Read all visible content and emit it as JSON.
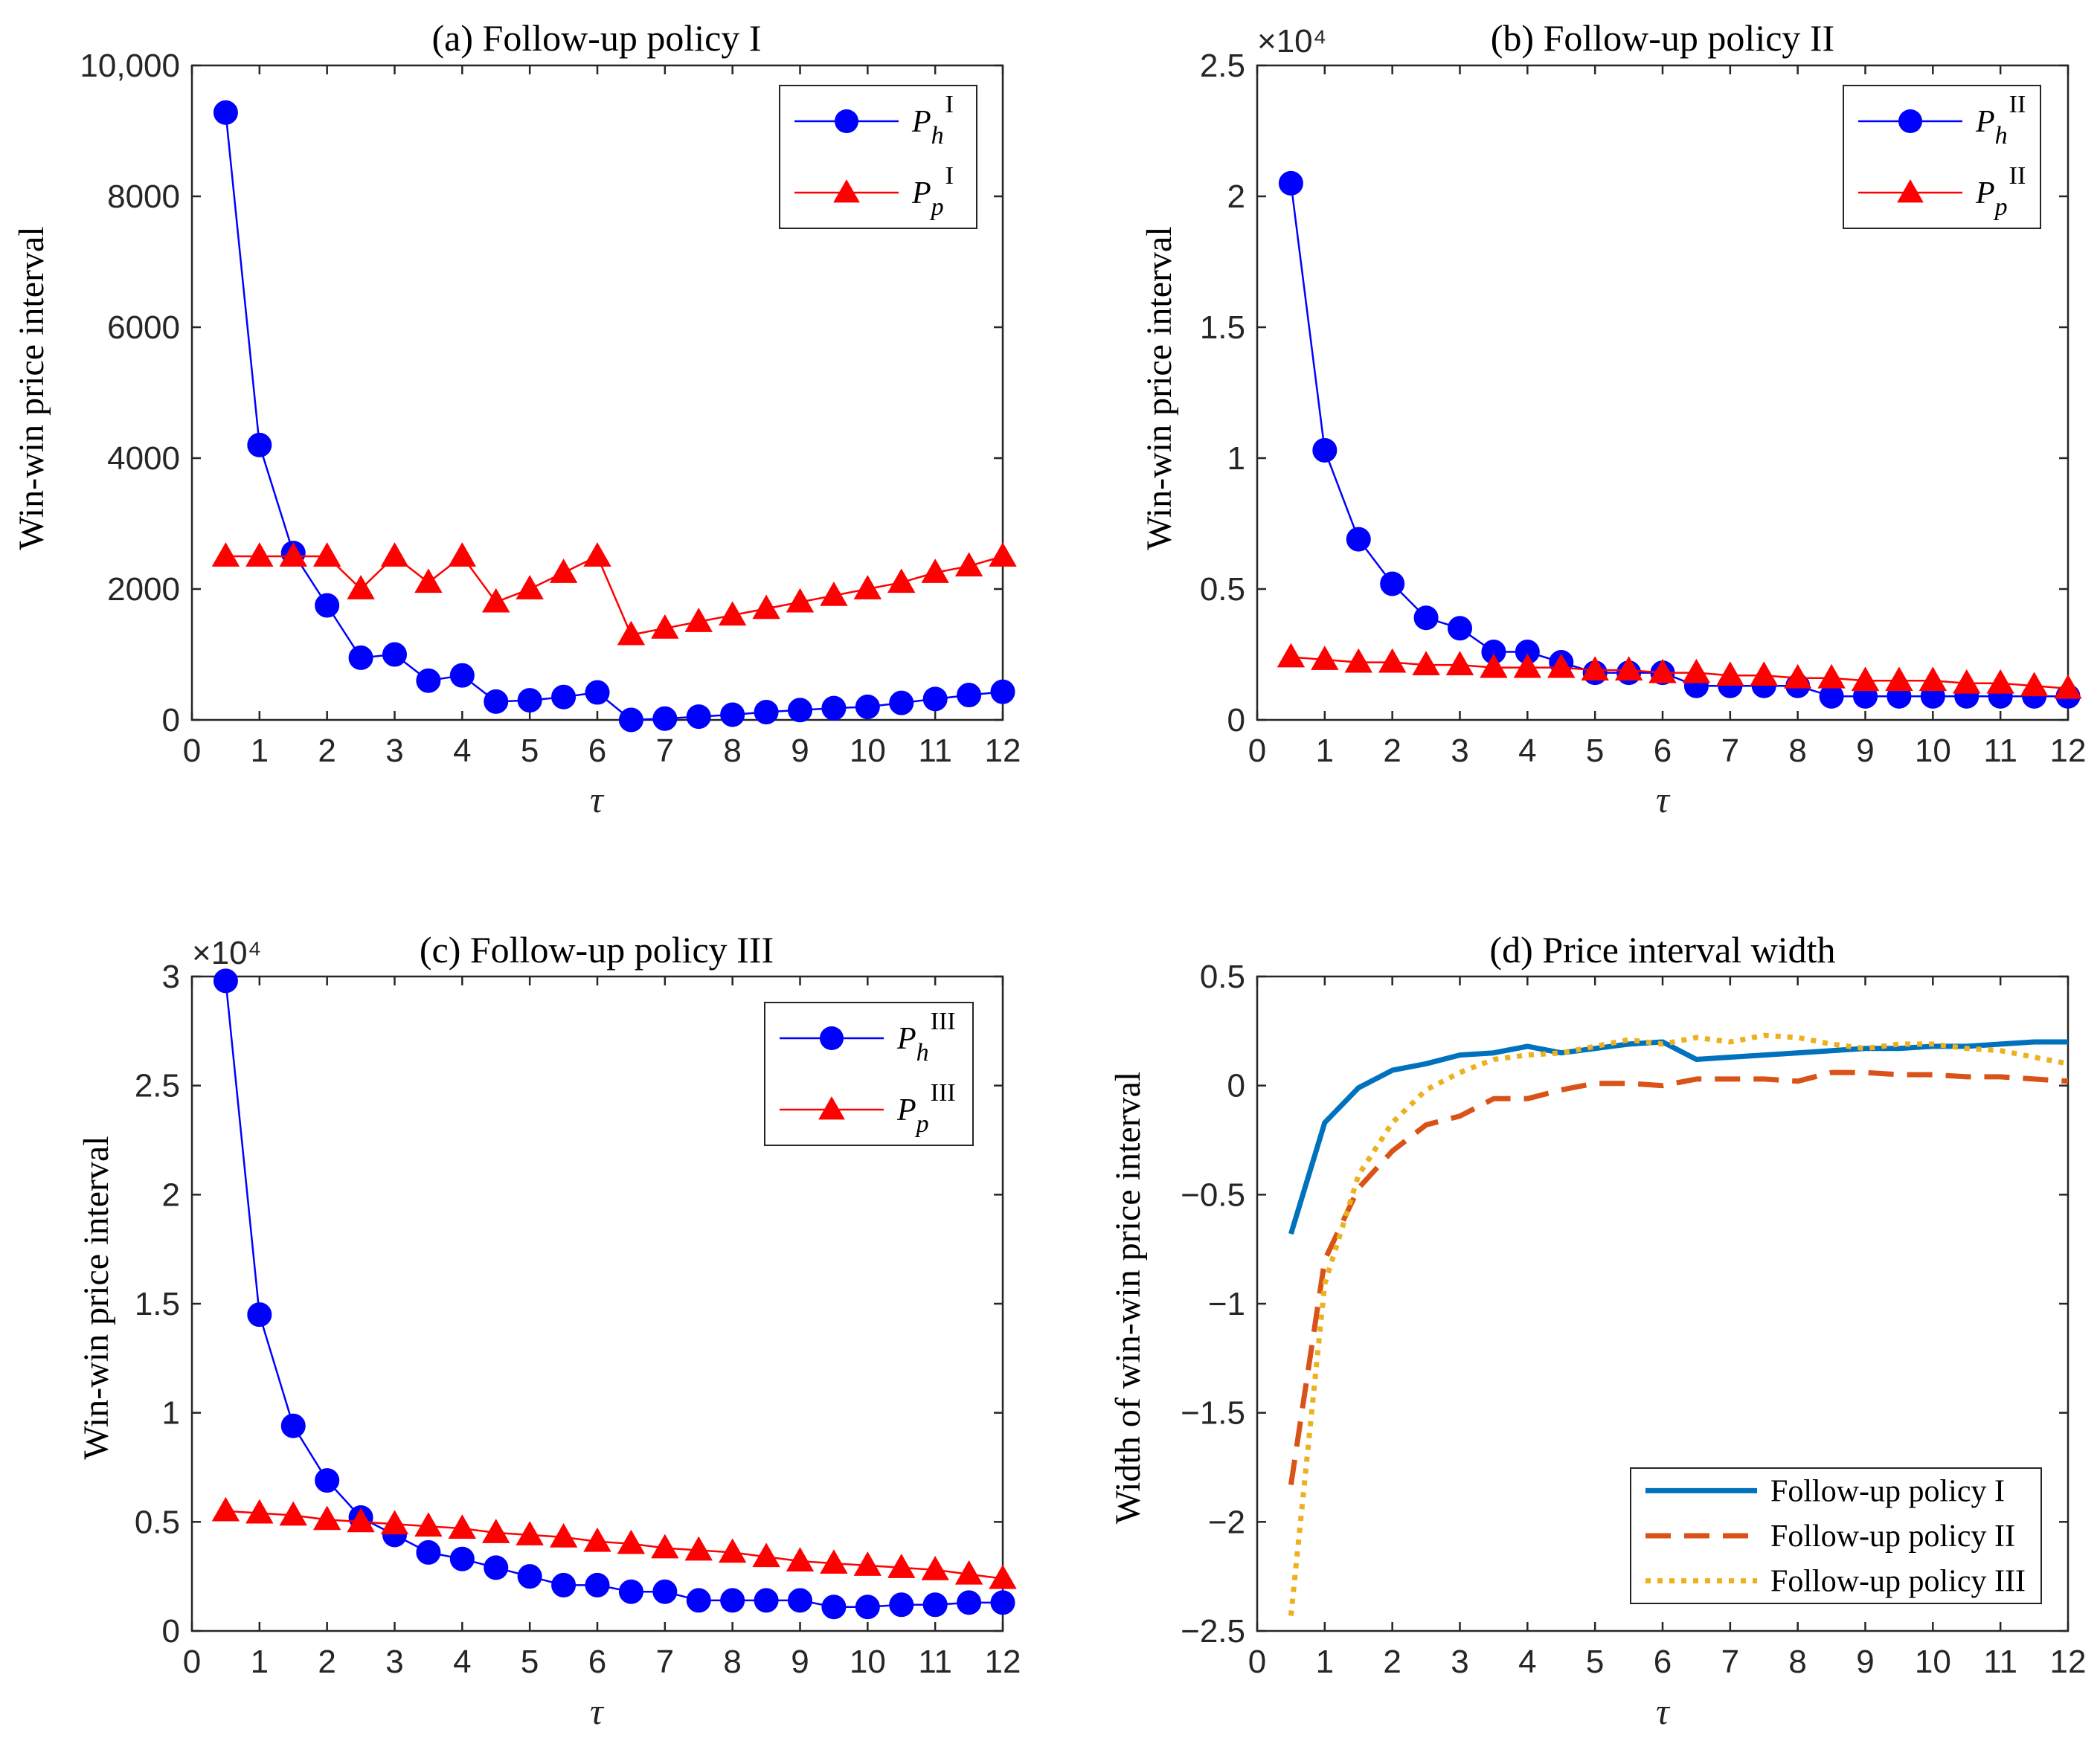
{
  "chart_data": [
    {
      "id": "a",
      "type": "line",
      "title": "(a) Follow-up policy I",
      "xlabel": "τ",
      "ylabel": "Win-win price interval",
      "xlim": [
        0,
        12
      ],
      "ylim": [
        0,
        10000
      ],
      "xticks": [
        0,
        1,
        2,
        3,
        4,
        5,
        6,
        7,
        8,
        9,
        10,
        11,
        12
      ],
      "yticks": [
        0,
        2000,
        4000,
        6000,
        8000,
        10000
      ],
      "ytick_labels": [
        "0",
        "2000",
        "4000",
        "6000",
        "8000",
        "10,000"
      ],
      "y_multiplier": "",
      "legend_position": "top-right",
      "x": [
        0.5,
        1,
        1.5,
        2,
        2.5,
        3,
        3.5,
        4,
        4.5,
        5,
        5.5,
        6,
        6.5,
        7,
        7.5,
        8,
        8.5,
        9,
        9.5,
        10,
        10.5,
        11,
        11.5,
        12
      ],
      "series": [
        {
          "name": "P_h^I",
          "sym": "P",
          "sub": "h",
          "sup": "I",
          "color": "#0000ff",
          "marker": "circle",
          "values": [
            9280,
            4200,
            2550,
            1750,
            950,
            1000,
            600,
            680,
            280,
            300,
            350,
            420,
            0,
            20,
            50,
            80,
            120,
            150,
            180,
            200,
            260,
            320,
            380,
            430
          ]
        },
        {
          "name": "P_p^I",
          "sym": "P",
          "sub": "p",
          "sup": "I",
          "color": "#ff0000",
          "marker": "triangle",
          "values": [
            2500,
            2500,
            2500,
            2500,
            2000,
            2500,
            2100,
            2500,
            1800,
            2000,
            2250,
            2500,
            1300,
            1400,
            1500,
            1600,
            1700,
            1800,
            1900,
            2000,
            2100,
            2250,
            2350,
            2500
          ]
        }
      ]
    },
    {
      "id": "b",
      "type": "line",
      "title": "(b) Follow-up policy II",
      "xlabel": "τ",
      "ylabel": "Win-win price interval",
      "xlim": [
        0,
        12
      ],
      "ylim": [
        0,
        2.5
      ],
      "xticks": [
        0,
        1,
        2,
        3,
        4,
        5,
        6,
        7,
        8,
        9,
        10,
        11,
        12
      ],
      "yticks": [
        0,
        0.5,
        1,
        1.5,
        2,
        2.5
      ],
      "ytick_labels": [
        "0",
        "0.5",
        "1",
        "1.5",
        "2",
        "2.5"
      ],
      "y_multiplier": "×10⁴",
      "legend_position": "top-right",
      "x": [
        0.5,
        1,
        1.5,
        2,
        2.5,
        3,
        3.5,
        4,
        4.5,
        5,
        5.5,
        6,
        6.5,
        7,
        7.5,
        8,
        8.5,
        9,
        9.5,
        10,
        10.5,
        11,
        11.5,
        12
      ],
      "series": [
        {
          "name": "P_h^II",
          "sym": "P",
          "sub": "h",
          "sup": "II",
          "color": "#0000ff",
          "marker": "circle",
          "values": [
            2.05,
            1.03,
            0.69,
            0.52,
            0.39,
            0.35,
            0.26,
            0.26,
            0.22,
            0.18,
            0.18,
            0.18,
            0.13,
            0.13,
            0.13,
            0.13,
            0.09,
            0.09,
            0.09,
            0.09,
            0.09,
            0.09,
            0.09,
            0.09
          ]
        },
        {
          "name": "P_p^II",
          "sym": "P",
          "sub": "p",
          "sup": "II",
          "color": "#ff0000",
          "marker": "triangle",
          "values": [
            0.24,
            0.23,
            0.22,
            0.22,
            0.21,
            0.21,
            0.2,
            0.2,
            0.2,
            0.19,
            0.19,
            0.18,
            0.18,
            0.17,
            0.17,
            0.16,
            0.16,
            0.15,
            0.15,
            0.15,
            0.14,
            0.14,
            0.13,
            0.12
          ]
        }
      ]
    },
    {
      "id": "c",
      "type": "line",
      "title": "(c) Follow-up policy III",
      "xlabel": "τ",
      "ylabel": "Win-win price interval",
      "xlim": [
        0,
        12
      ],
      "ylim": [
        0,
        3
      ],
      "xticks": [
        0,
        1,
        2,
        3,
        4,
        5,
        6,
        7,
        8,
        9,
        10,
        11,
        12
      ],
      "yticks": [
        0,
        0.5,
        1,
        1.5,
        2,
        2.5,
        3
      ],
      "ytick_labels": [
        "0",
        "0.5",
        "1",
        "1.5",
        "2",
        "2.5",
        "3"
      ],
      "y_multiplier": "×10⁴",
      "legend_position": "top-right",
      "x": [
        0.5,
        1,
        1.5,
        2,
        2.5,
        3,
        3.5,
        4,
        4.5,
        5,
        5.5,
        6,
        6.5,
        7,
        7.5,
        8,
        8.5,
        9,
        9.5,
        10,
        10.5,
        11,
        11.5,
        12
      ],
      "series": [
        {
          "name": "P_h^III",
          "sym": "P",
          "sub": "h",
          "sup": "III",
          "color": "#0000ff",
          "marker": "circle",
          "values": [
            2.98,
            1.45,
            0.94,
            0.69,
            0.52,
            0.44,
            0.36,
            0.33,
            0.29,
            0.25,
            0.21,
            0.21,
            0.18,
            0.18,
            0.14,
            0.14,
            0.14,
            0.14,
            0.11,
            0.11,
            0.12,
            0.12,
            0.13,
            0.13
          ]
        },
        {
          "name": "P_p^III",
          "sym": "P",
          "sub": "p",
          "sup": "III",
          "color": "#ff0000",
          "marker": "triangle",
          "values": [
            0.55,
            0.54,
            0.53,
            0.51,
            0.5,
            0.49,
            0.48,
            0.47,
            0.45,
            0.44,
            0.43,
            0.41,
            0.4,
            0.38,
            0.37,
            0.36,
            0.34,
            0.32,
            0.31,
            0.3,
            0.29,
            0.28,
            0.26,
            0.24
          ]
        }
      ]
    },
    {
      "id": "d",
      "type": "line",
      "title": "(d) Price interval width",
      "xlabel": "τ",
      "ylabel": "Width of win-win price interval",
      "xlim": [
        0,
        12
      ],
      "ylim": [
        -2.5,
        0.5
      ],
      "xticks": [
        0,
        1,
        2,
        3,
        4,
        5,
        6,
        7,
        8,
        9,
        10,
        11,
        12
      ],
      "yticks": [
        -2.5,
        -2,
        -1.5,
        -1,
        -0.5,
        0,
        0.5
      ],
      "ytick_labels": [
        "−2.5",
        "−2",
        "−1.5",
        "−1",
        "−0.5",
        "0",
        "0.5"
      ],
      "y_multiplier": "",
      "legend_position": "bottom-right",
      "x": [
        0.5,
        1,
        1.5,
        2,
        2.5,
        3,
        3.5,
        4,
        4.5,
        5,
        5.5,
        6,
        6.5,
        7,
        7.5,
        8,
        8.5,
        9,
        9.5,
        10,
        10.5,
        11,
        11.5,
        12
      ],
      "series": [
        {
          "name": "Follow-up policy I",
          "color": "#0072bd",
          "dash": "solid",
          "values": [
            -0.68,
            -0.17,
            -0.01,
            0.07,
            0.1,
            0.14,
            0.15,
            0.18,
            0.15,
            0.17,
            0.19,
            0.2,
            0.12,
            0.13,
            0.14,
            0.15,
            0.16,
            0.17,
            0.17,
            0.18,
            0.18,
            0.19,
            0.2,
            0.2
          ]
        },
        {
          "name": "Follow-up policy II",
          "color": "#d95319",
          "dash": "dashed",
          "values": [
            -1.83,
            -0.8,
            -0.47,
            -0.3,
            -0.18,
            -0.14,
            -0.06,
            -0.06,
            -0.02,
            0.01,
            0.01,
            0.0,
            0.03,
            0.03,
            0.03,
            0.02,
            0.06,
            0.06,
            0.05,
            0.05,
            0.04,
            0.04,
            0.03,
            0.02
          ]
        },
        {
          "name": "Follow-up policy III",
          "color": "#edb120",
          "dash": "dotted",
          "values": [
            -2.43,
            -0.91,
            -0.41,
            -0.17,
            -0.02,
            0.06,
            0.12,
            0.14,
            0.15,
            0.18,
            0.21,
            0.19,
            0.22,
            0.2,
            0.23,
            0.22,
            0.19,
            0.17,
            0.19,
            0.19,
            0.17,
            0.16,
            0.13,
            0.1
          ]
        }
      ]
    }
  ]
}
